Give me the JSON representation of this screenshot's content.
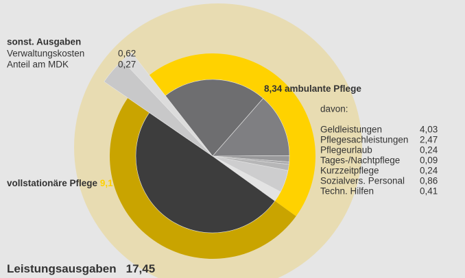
{
  "chart_data": {
    "type": "pie",
    "title": "Leistungsausgaben",
    "total": {
      "value": 17.45,
      "label": "17,45"
    },
    "groups": [
      {
        "name": "ambulante Pflege",
        "value": 8.34,
        "value_label": "8,34",
        "color": "#ffd200",
        "subtitle": "davon:",
        "items": [
          {
            "name": "Geldleistungen",
            "value": 4.03,
            "value_label": "4,03",
            "color": "#6e6e70"
          },
          {
            "name": "Pflegesachleistungen",
            "value": 2.47,
            "value_label": "2,47",
            "color": "#7f7f82"
          },
          {
            "name": "Pflegeurlaub",
            "value": 0.24,
            "value_label": "0,24",
            "color": "#98989a"
          },
          {
            "name": "Tages-/Nachtpflege",
            "value": 0.09,
            "value_label": "0,09",
            "color": "#a8a8aa"
          },
          {
            "name": "Kurzzeitpflege",
            "value": 0.24,
            "value_label": "0,24",
            "color": "#b6b6b7"
          },
          {
            "name": "Sozialvers. Personal",
            "value": 0.86,
            "value_label": "0,86",
            "color": "#cdcdce"
          },
          {
            "name": "Techn. Hilfen",
            "value": 0.41,
            "value_label": "0,41",
            "color": "#e3e3e3"
          }
        ]
      },
      {
        "name": "vollstationäre Pflege",
        "value": 9.1,
        "value_label": "9,1",
        "color": "#c9a400",
        "inner_color": "#3d3d3d"
      },
      {
        "name": "sonst. Ausgaben",
        "color": "#c8c8c9",
        "items": [
          {
            "name": "Verwaltungskosten",
            "value": 0.62,
            "value_label": "0,62",
            "color": "#c8c8c9"
          },
          {
            "name": "Anteil am MDK",
            "value": 0.27,
            "value_label": "0,27",
            "color": "#dcdcdc"
          }
        ]
      }
    ]
  }
}
